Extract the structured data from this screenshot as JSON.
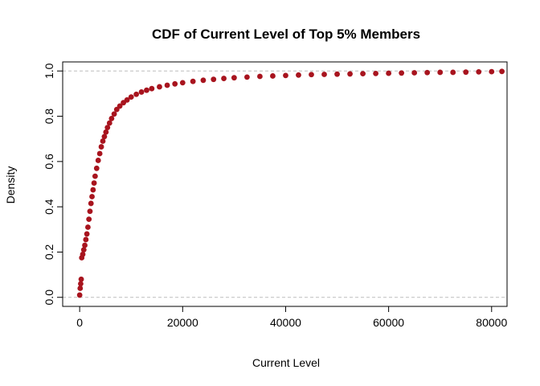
{
  "chart_data": {
    "type": "scatter",
    "title": "CDF of Current Level of Top 5% Members",
    "xlabel": "Current Level",
    "ylabel": "Density",
    "xlim": [
      -3300,
      83000
    ],
    "ylim": [
      -0.04,
      1.04
    ],
    "x_ticks": [
      0,
      20000,
      40000,
      60000,
      80000
    ],
    "x_tick_labels": [
      "0",
      "20000",
      "40000",
      "60000",
      "80000"
    ],
    "y_ticks": [
      0.0,
      0.2,
      0.4,
      0.6,
      0.8,
      1.0
    ],
    "y_tick_labels": [
      "0.0",
      "0.2",
      "0.4",
      "0.6",
      "0.8",
      "1.0"
    ],
    "reference_lines": [
      0,
      1
    ],
    "grid": false,
    "point_color": "#A8141E",
    "reference_line_color": "#BEBEBE",
    "series": [
      {
        "points": [
          [
            0,
            0.01
          ],
          [
            100,
            0.04
          ],
          [
            200,
            0.06
          ],
          [
            300,
            0.08
          ],
          [
            400,
            0.175
          ],
          [
            600,
            0.19
          ],
          [
            800,
            0.21
          ],
          [
            1000,
            0.23
          ],
          [
            1200,
            0.255
          ],
          [
            1400,
            0.28
          ],
          [
            1600,
            0.31
          ],
          [
            1800,
            0.345
          ],
          [
            2000,
            0.38
          ],
          [
            2200,
            0.415
          ],
          [
            2400,
            0.445
          ],
          [
            2600,
            0.475
          ],
          [
            2800,
            0.505
          ],
          [
            3000,
            0.535
          ],
          [
            3300,
            0.57
          ],
          [
            3600,
            0.605
          ],
          [
            3900,
            0.635
          ],
          [
            4200,
            0.665
          ],
          [
            4500,
            0.69
          ],
          [
            4800,
            0.71
          ],
          [
            5100,
            0.73
          ],
          [
            5400,
            0.75
          ],
          [
            5800,
            0.77
          ],
          [
            6200,
            0.79
          ],
          [
            6700,
            0.81
          ],
          [
            7200,
            0.83
          ],
          [
            7800,
            0.845
          ],
          [
            8500,
            0.86
          ],
          [
            9200,
            0.872
          ],
          [
            10000,
            0.885
          ],
          [
            11000,
            0.897
          ],
          [
            12000,
            0.907
          ],
          [
            13000,
            0.915
          ],
          [
            14000,
            0.922
          ],
          [
            15500,
            0.93
          ],
          [
            17000,
            0.937
          ],
          [
            18500,
            0.943
          ],
          [
            20000,
            0.948
          ],
          [
            22000,
            0.954
          ],
          [
            24000,
            0.959
          ],
          [
            26000,
            0.963
          ],
          [
            28000,
            0.967
          ],
          [
            30000,
            0.97
          ],
          [
            32500,
            0.973
          ],
          [
            35000,
            0.976
          ],
          [
            37500,
            0.978
          ],
          [
            40000,
            0.98
          ],
          [
            42500,
            0.982
          ],
          [
            45000,
            0.984
          ],
          [
            47500,
            0.985
          ],
          [
            50000,
            0.986
          ],
          [
            52500,
            0.987
          ],
          [
            55000,
            0.988
          ],
          [
            57500,
            0.989
          ],
          [
            60000,
            0.99
          ],
          [
            62500,
            0.991
          ],
          [
            65000,
            0.992
          ],
          [
            67500,
            0.993
          ],
          [
            70000,
            0.994
          ],
          [
            72500,
            0.994
          ],
          [
            75000,
            0.995
          ],
          [
            77500,
            0.996
          ],
          [
            80000,
            0.997
          ],
          [
            82000,
            0.998
          ]
        ]
      }
    ]
  }
}
